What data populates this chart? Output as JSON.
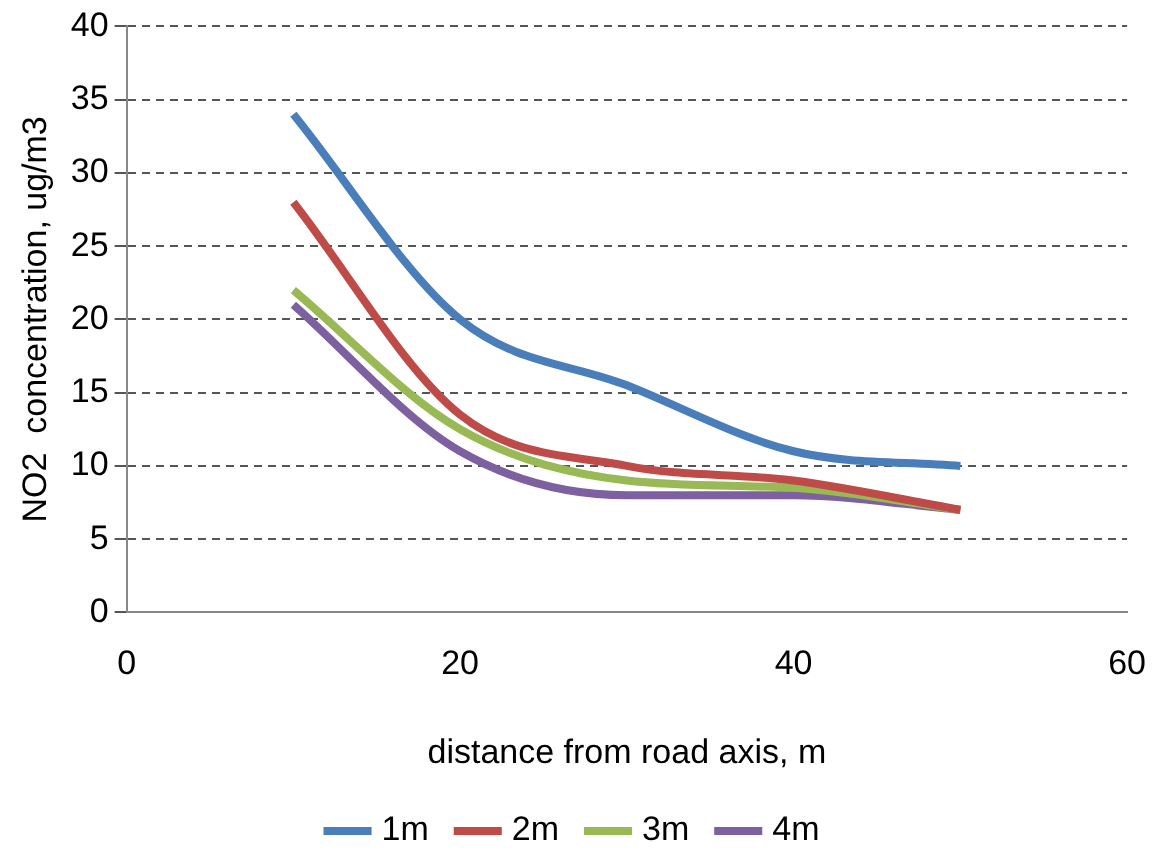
{
  "chart_data": {
    "type": "line",
    "xlabel": "distance from road axis, m",
    "ylabel": "NO2  concentration, ug/m3",
    "x": [
      10,
      20,
      30,
      40,
      50
    ],
    "series": [
      {
        "name": "1m",
        "color": "#4a7ebb",
        "values": [
          34,
          20,
          15.5,
          11,
          10
        ]
      },
      {
        "name": "2m",
        "color": "#be4b48",
        "values": [
          28,
          13.5,
          10,
          9,
          7
        ]
      },
      {
        "name": "3m",
        "color": "#98b954",
        "values": [
          22,
          12.5,
          9,
          8.5,
          7
        ]
      },
      {
        "name": "4m",
        "color": "#7d60a0",
        "values": [
          21,
          11,
          8,
          8,
          7
        ]
      }
    ],
    "xlim": [
      0,
      60
    ],
    "xticks": [
      0,
      20,
      40,
      60
    ],
    "ylim": [
      0,
      40
    ],
    "yticks": [
      0,
      5,
      10,
      15,
      20,
      25,
      30,
      35,
      40
    ],
    "grid": "y",
    "legend": "bottom",
    "marker": "none",
    "line_style": "solid"
  }
}
